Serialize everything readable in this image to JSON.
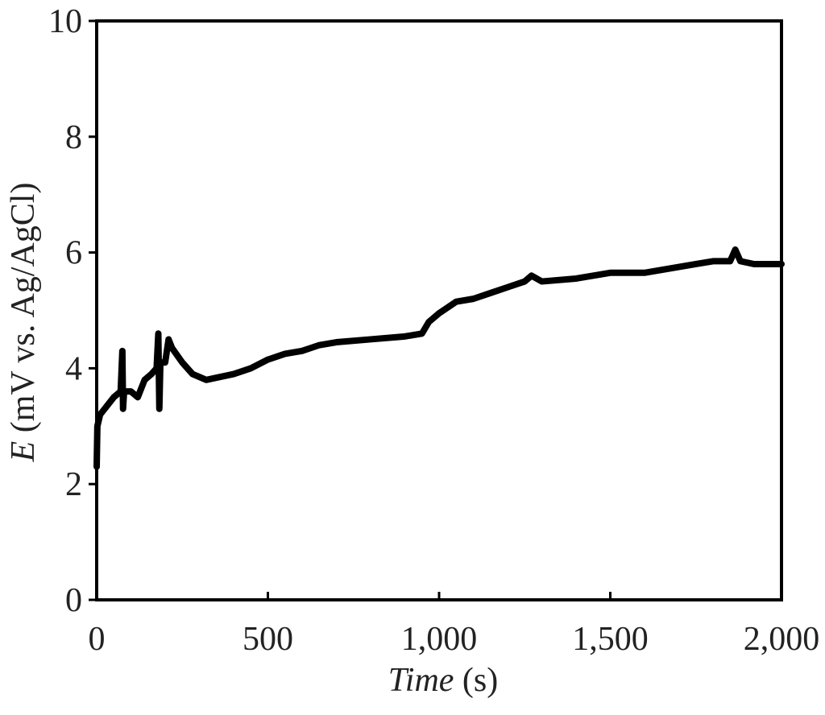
{
  "chart_data": {
    "type": "line",
    "x_label": {
      "symbol": "Time",
      "unit": "(s)"
    },
    "y_label": {
      "symbol": "E",
      "unit": "(mV vs. Ag/AgCl)"
    },
    "xlim": [
      0,
      2000
    ],
    "xticks": [
      0,
      500,
      {
        "value": 1000,
        "label": "1,000"
      },
      {
        "value": 1500,
        "label": "1,500"
      },
      {
        "value": 2000,
        "label": "2,000"
      }
    ],
    "ylim": [
      0,
      10
    ],
    "yticks": [
      0,
      2,
      4,
      6,
      8,
      10
    ],
    "grid": false,
    "series": [
      {
        "color": "#000000",
        "x": [
          0,
          2,
          10,
          30,
          50,
          70,
          75,
          77,
          80,
          100,
          120,
          140,
          160,
          175,
          180,
          183,
          186,
          200,
          210,
          220,
          250,
          280,
          320,
          360,
          400,
          450,
          500,
          550,
          600,
          650,
          700,
          800,
          900,
          950,
          970,
          1000,
          1050,
          1100,
          1150,
          1200,
          1250,
          1270,
          1300,
          1400,
          1500,
          1600,
          1650,
          1700,
          1750,
          1800,
          1850,
          1865,
          1880,
          1920,
          1950,
          2000
        ],
        "values": [
          2.3,
          3.0,
          3.2,
          3.35,
          3.5,
          3.6,
          4.3,
          3.3,
          3.6,
          3.6,
          3.5,
          3.8,
          3.9,
          4.0,
          4.6,
          3.3,
          4.1,
          4.1,
          4.5,
          4.35,
          4.1,
          3.9,
          3.8,
          3.85,
          3.9,
          4.0,
          4.15,
          4.25,
          4.3,
          4.4,
          4.45,
          4.5,
          4.55,
          4.6,
          4.8,
          4.95,
          5.15,
          5.2,
          5.3,
          5.4,
          5.5,
          5.6,
          5.5,
          5.55,
          5.65,
          5.65,
          5.7,
          5.75,
          5.8,
          5.85,
          5.85,
          6.05,
          5.85,
          5.8,
          5.8,
          5.8
        ]
      }
    ]
  }
}
